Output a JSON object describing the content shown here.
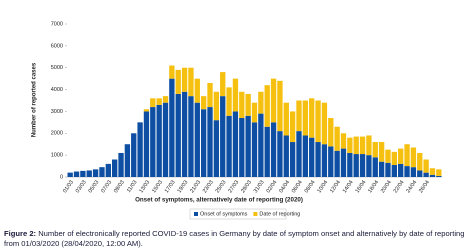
{
  "chart_data": {
    "type": "bar",
    "stacked": true,
    "y_label": "Number of reported cases",
    "x_label": "Onset of symptoms, alternatively date of reporting (2020)",
    "categories": [
      "01/03",
      null,
      "03/03",
      null,
      "05/03",
      null,
      "07/03",
      null,
      "09/03",
      null,
      "11/03",
      null,
      "13/03",
      null,
      "15/03",
      null,
      "17/03",
      null,
      "19/03",
      null,
      "21/03",
      null,
      "23/03",
      null,
      "25/03",
      null,
      "27/03",
      null,
      "29/03",
      null,
      "31/03",
      null,
      "02/04",
      null,
      "04/04",
      null,
      "06/04",
      null,
      "08/04",
      null,
      "10/04",
      null,
      "12/04",
      null,
      "14/04",
      null,
      "16/04",
      null,
      "18/04",
      null,
      "20/04",
      null,
      "22/04",
      null,
      "24/04",
      null,
      "26/04",
      null,
      null
    ],
    "series": [
      {
        "name": "Onset of symptoms",
        "color": "#0e4fa3",
        "values": [
          200,
          250,
          280,
          300,
          350,
          450,
          600,
          800,
          1100,
          1500,
          2000,
          2500,
          3000,
          3200,
          3300,
          3400,
          4500,
          3800,
          3900,
          3700,
          3400,
          3100,
          3200,
          2600,
          3700,
          2800,
          3000,
          2700,
          2800,
          2500,
          2900,
          2300,
          2500,
          2100,
          1900,
          1600,
          2100,
          1900,
          1800,
          1600,
          1500,
          1400,
          1200,
          1300,
          1100,
          1050,
          1050,
          1000,
          900,
          700,
          650,
          550,
          600,
          500,
          450,
          300,
          200,
          100,
          50
        ]
      },
      {
        "name": "Date of reporting",
        "color": "#f5c010",
        "values": [
          0,
          0,
          0,
          0,
          0,
          0,
          0,
          0,
          0,
          0,
          0,
          0,
          100,
          400,
          300,
          300,
          600,
          1100,
          1100,
          1300,
          1100,
          600,
          1100,
          1300,
          1100,
          1300,
          1500,
          1200,
          1000,
          900,
          1000,
          1900,
          2000,
          2300,
          1500,
          1400,
          1400,
          1600,
          1800,
          1900,
          1900,
          1300,
          1100,
          700,
          700,
          800,
          800,
          900,
          700,
          900,
          600,
          600,
          700,
          1000,
          900,
          800,
          600,
          300,
          300
        ]
      }
    ],
    "ylim": [
      0,
      7000
    ],
    "yticks": [
      0,
      1000,
      2000,
      3000,
      4000,
      5000,
      6000,
      7000
    ],
    "grid": false
  },
  "caption_label": "Figure 2:",
  "caption": "Number of electronically reported COVID-19 cases in Germany by date of symptom onset and alternatively by date of reporting from 01/03/2020 (28/04/2020, 12:00 AM)."
}
